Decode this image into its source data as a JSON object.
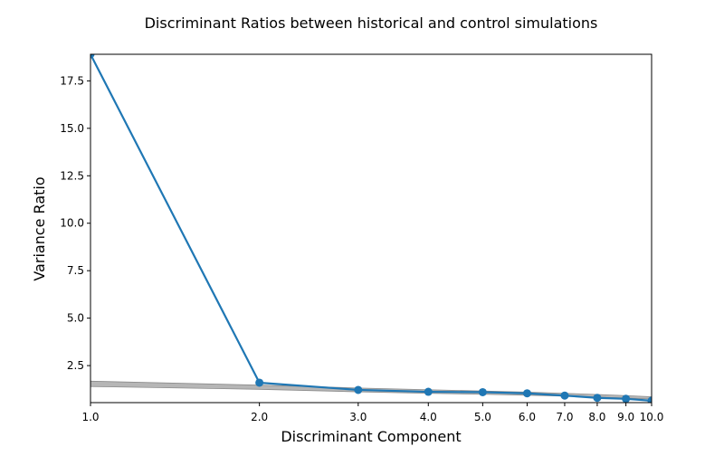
{
  "chart_data": {
    "type": "line",
    "title": "Discriminant Ratios between historical and control simulations",
    "xlabel": "Discriminant Component",
    "ylabel": "Variance Ratio",
    "x_scale": "log",
    "xlim": [
      1.0,
      10.0
    ],
    "ylim": [
      0.55,
      18.9
    ],
    "x_ticks": [
      1.0,
      2.0,
      3.0,
      4.0,
      5.0,
      6.0,
      7.0,
      8.0,
      9.0,
      10.0
    ],
    "x_tick_labels": [
      "1.0",
      "2.0",
      "3.0",
      "4.0",
      "5.0",
      "6.0",
      "7.0",
      "8.0",
      "9.0",
      "10.0"
    ],
    "y_ticks": [
      2.5,
      5.0,
      7.5,
      10.0,
      12.5,
      15.0,
      17.5
    ],
    "y_tick_labels": [
      "2.5",
      "5.0",
      "7.5",
      "10.0",
      "12.5",
      "15.0",
      "17.5"
    ],
    "grid": false,
    "legend": "none",
    "series": [
      {
        "x": [
          1,
          2,
          3,
          4,
          5,
          6,
          7,
          8,
          9,
          10
        ],
        "values": [
          18.9,
          1.6,
          1.22,
          1.12,
          1.1,
          1.04,
          0.92,
          0.8,
          0.75,
          0.65
        ],
        "color": "#1f77b4",
        "marker": "circle"
      }
    ],
    "band": {
      "x": [
        1,
        2,
        3,
        4,
        5,
        6,
        7,
        8,
        9,
        10
      ],
      "lower": [
        1.4,
        1.25,
        1.12,
        1.04,
        0.99,
        0.94,
        0.89,
        0.84,
        0.79,
        0.74
      ],
      "upper": [
        1.68,
        1.47,
        1.32,
        1.23,
        1.16,
        1.1,
        1.04,
        0.98,
        0.92,
        0.86
      ],
      "color": "#a9a9a9"
    }
  }
}
